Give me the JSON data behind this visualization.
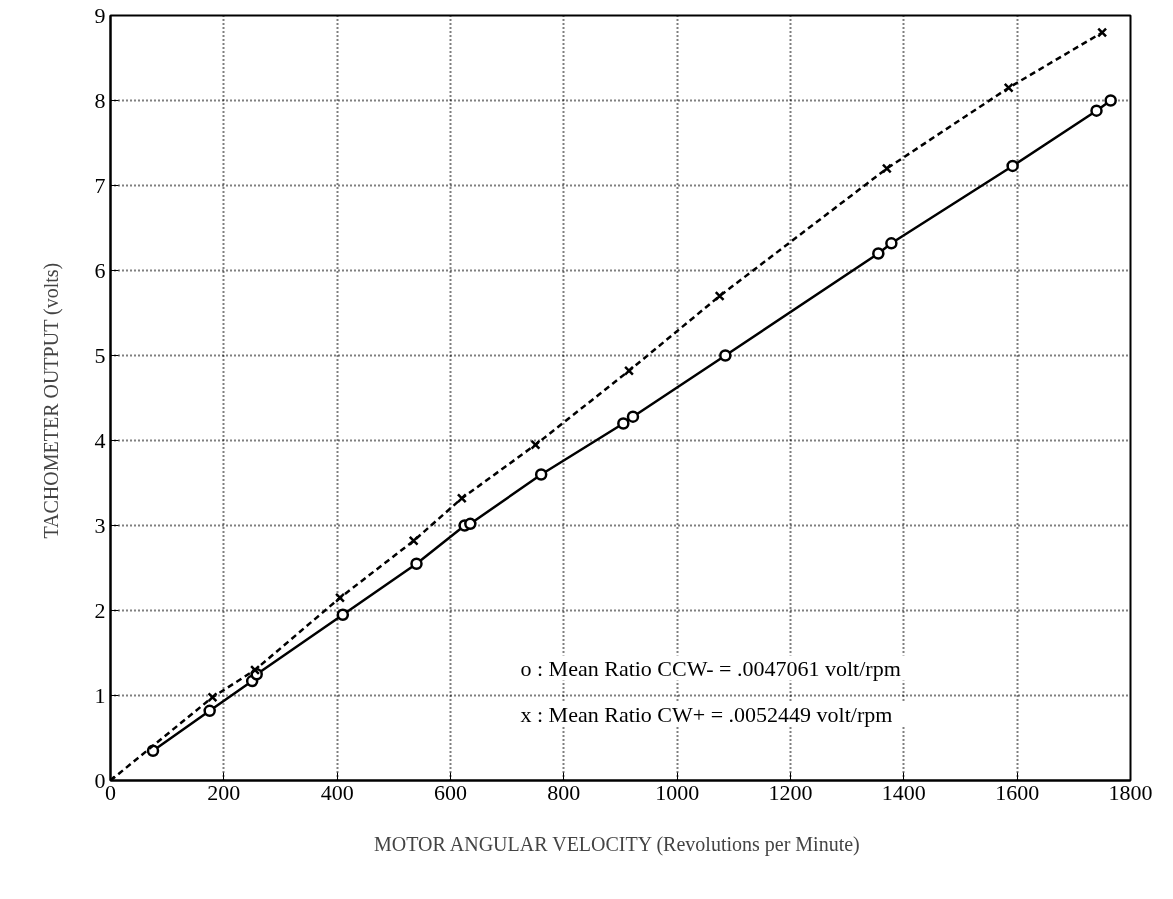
{
  "chart_data": {
    "type": "line",
    "xlabel": "MOTOR ANGULAR VELOCITY  (Revolutions per Minute)",
    "ylabel": "TACHOMETER OUTPUT  (volts)",
    "xlim": [
      0,
      1800
    ],
    "ylim": [
      0,
      9
    ],
    "xticks": [
      0,
      200,
      400,
      600,
      800,
      1000,
      1200,
      1400,
      1600,
      1800
    ],
    "yticks": [
      0,
      1,
      2,
      3,
      4,
      5,
      6,
      7,
      8,
      9
    ],
    "grid": true,
    "annotations": [
      "o : Mean Ratio CCW-  =   .0047061 volt/rpm",
      "x : Mean Ratio CW+   =   .0052449 volt/rpm"
    ],
    "series": [
      {
        "color": "#000000",
        "marker": "circle",
        "line_style": "solid",
        "x": [
          75,
          175,
          250,
          258,
          410,
          540,
          625,
          635,
          760,
          905,
          922,
          1085,
          1355,
          1378,
          1592,
          1740,
          1765
        ],
        "values": [
          0.35,
          0.82,
          1.17,
          1.25,
          1.95,
          2.55,
          3.0,
          3.02,
          3.6,
          4.2,
          4.28,
          5.0,
          6.2,
          6.32,
          7.23,
          7.88,
          8.0
        ]
      },
      {
        "color": "#000000",
        "marker": "cross",
        "line_style": "dashed",
        "x": [
          0,
          180,
          255,
          405,
          535,
          620,
          750,
          915,
          1075,
          1370,
          1585,
          1750
        ],
        "values": [
          0,
          0.98,
          1.3,
          2.15,
          2.82,
          3.32,
          3.95,
          4.82,
          5.7,
          7.2,
          8.15,
          8.8
        ]
      }
    ]
  }
}
